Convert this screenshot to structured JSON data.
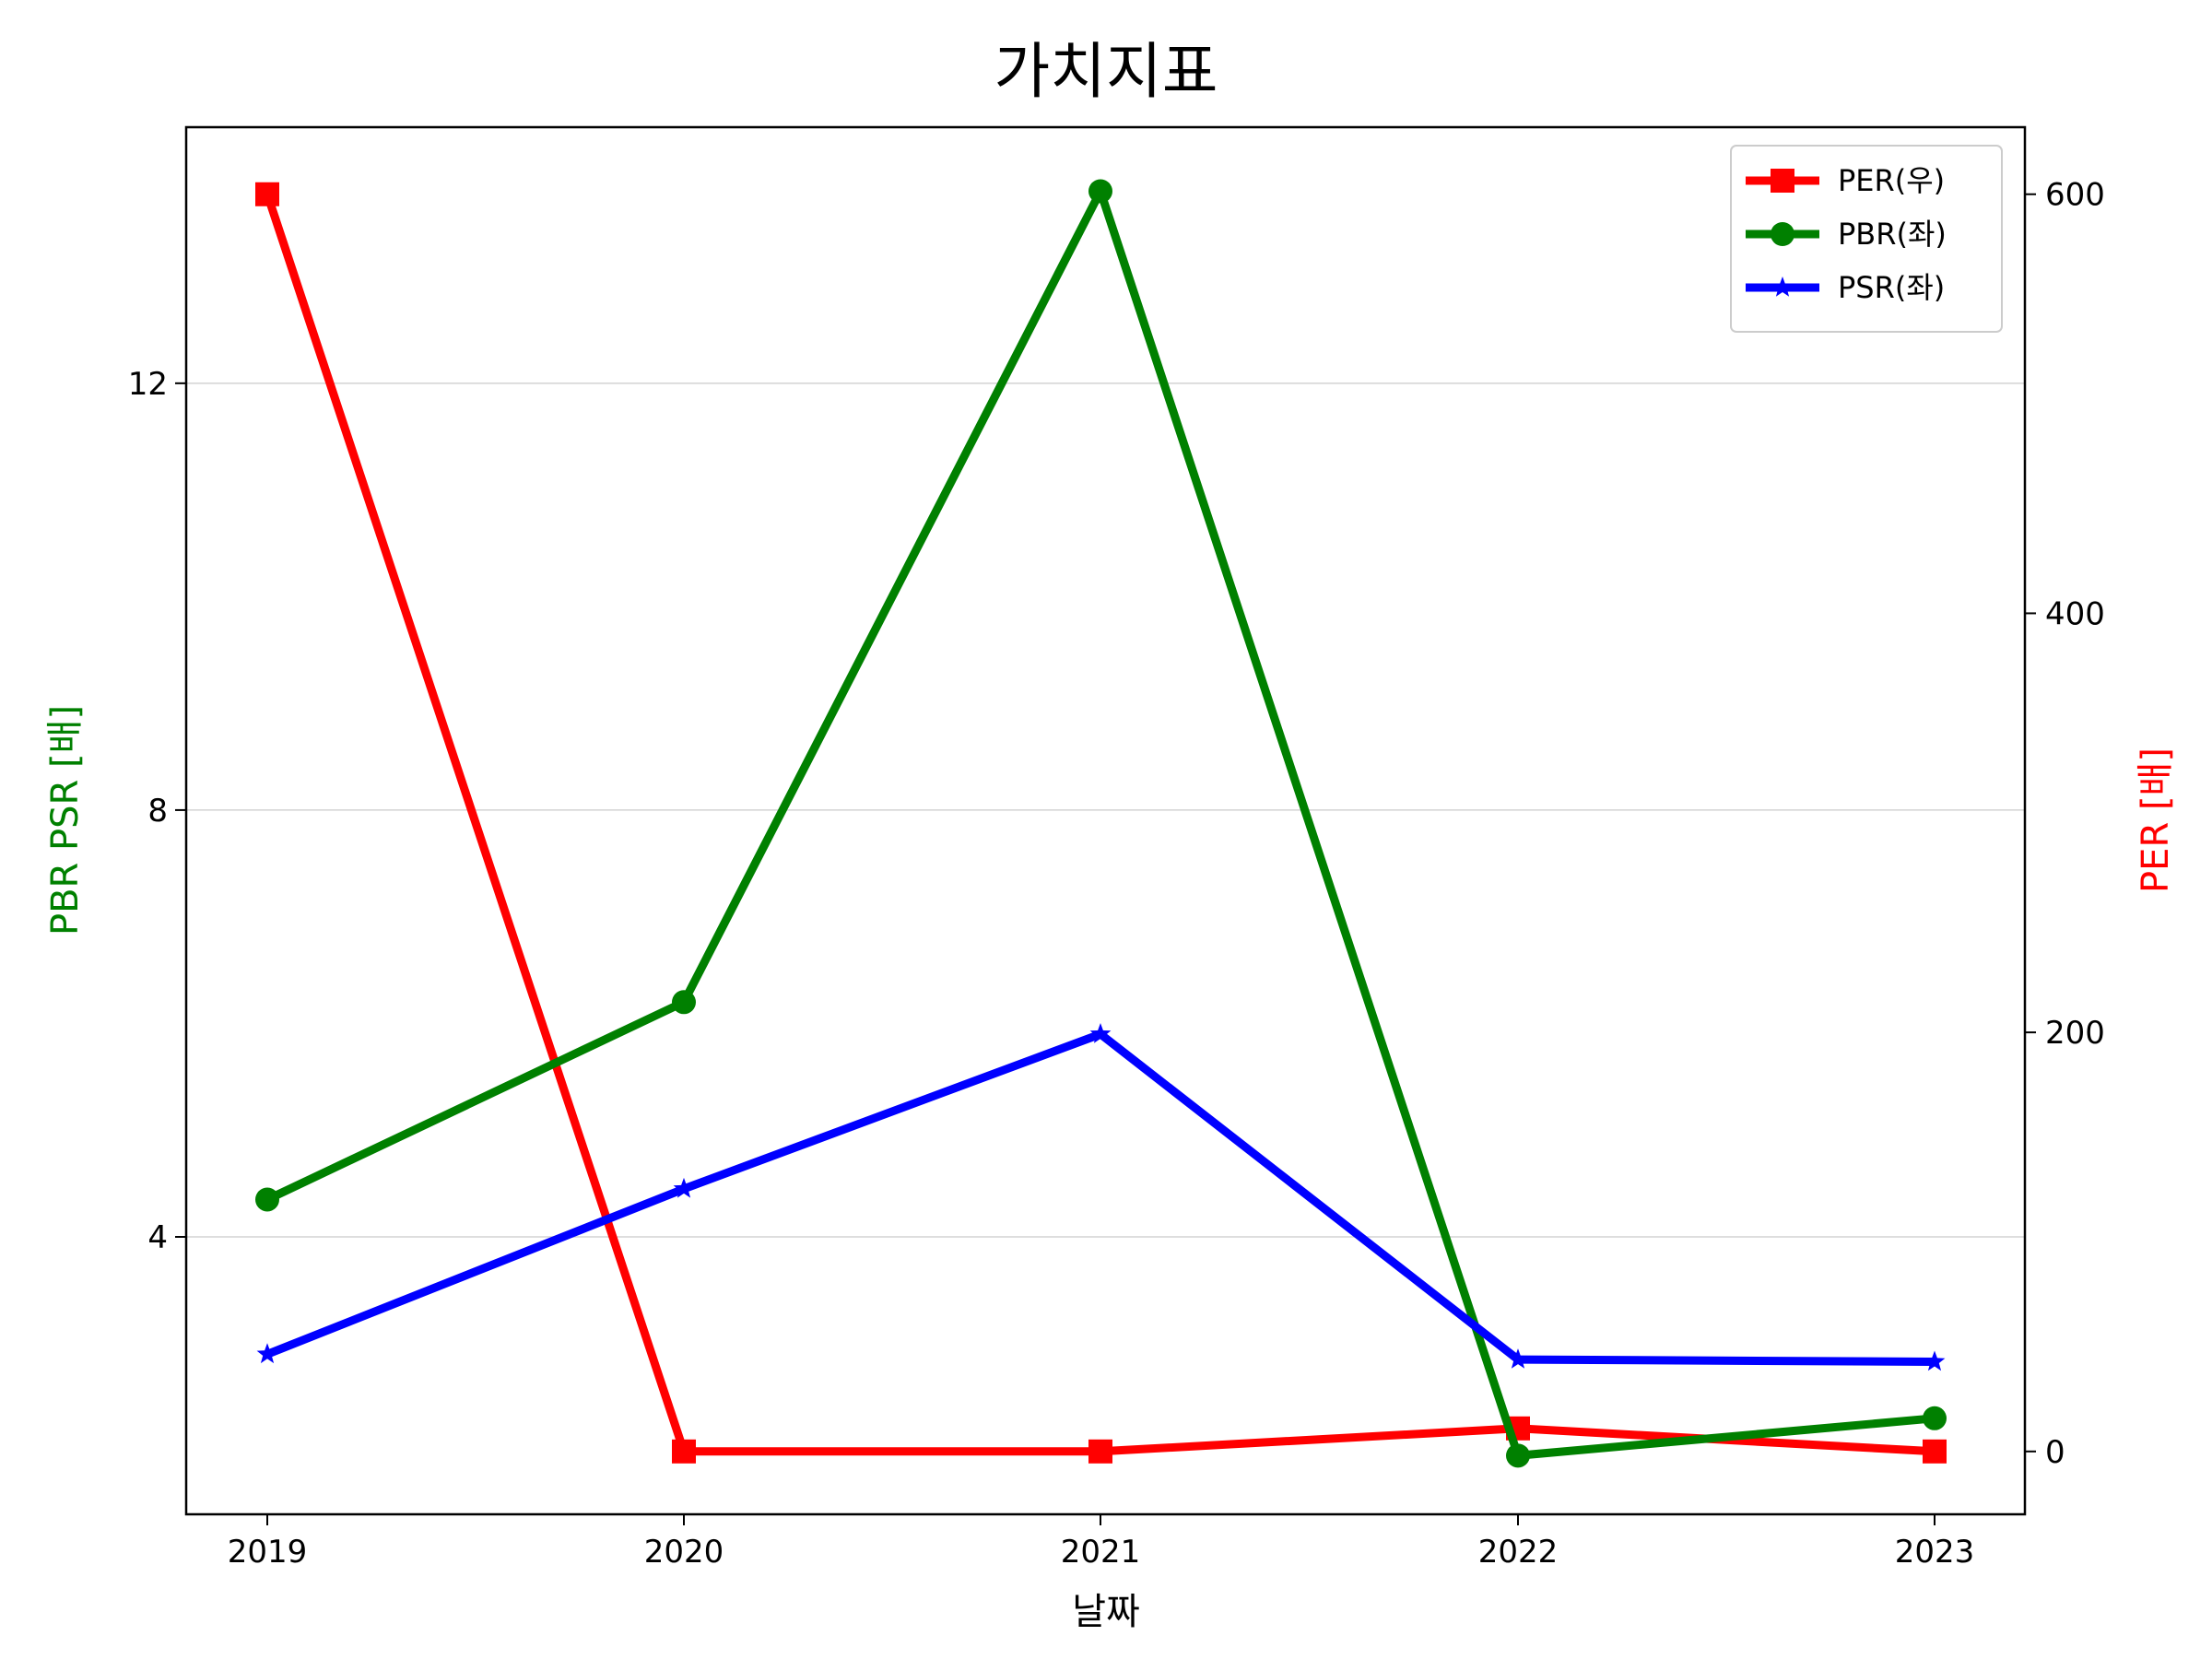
{
  "chart_data": {
    "type": "line",
    "title": "가치지표",
    "xlabel": "날짜",
    "ylabel_left": "PBR PSR [배]",
    "ylabel_right": "PER [배]",
    "categories": [
      "2019",
      "2020",
      "2021",
      "2022",
      "2023"
    ],
    "left_axis": {
      "ylim": [
        1.4,
        14.4
      ],
      "ticks": [
        4,
        8,
        12
      ]
    },
    "right_axis": {
      "ylim": [
        -30,
        632
      ],
      "ticks": [
        0,
        200,
        400,
        600
      ]
    },
    "grid": "horizontal (left axis)",
    "legend_position": "top-right",
    "series": [
      {
        "name": "PER(우)",
        "axis": "right",
        "color": "#ff0000",
        "marker": "square",
        "values": [
          600,
          0,
          0,
          11,
          0
        ]
      },
      {
        "name": "PBR(좌)",
        "axis": "left",
        "color": "#008000",
        "marker": "circle",
        "values": [
          4.35,
          6.2,
          13.8,
          1.95,
          2.3
        ]
      },
      {
        "name": "PSR(좌)",
        "axis": "left",
        "color": "#0000ff",
        "marker": "star",
        "values": [
          2.9,
          4.45,
          5.9,
          2.85,
          2.83
        ]
      }
    ]
  }
}
